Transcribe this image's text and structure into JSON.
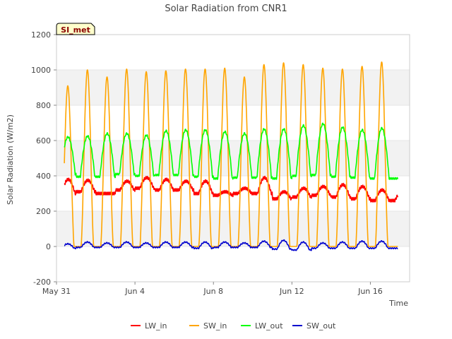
{
  "chart_data": {
    "type": "line",
    "title": "Solar Radiation from CNR1",
    "badge": "SI_met",
    "xlabel": "Time",
    "ylabel": "Solar Radiation (W/m2)",
    "ylim": [
      -200,
      1200
    ],
    "yticks": [
      -200,
      0,
      200,
      400,
      600,
      800,
      1000,
      1200
    ],
    "xlim": [
      "2024-05-31",
      "2024-06-18"
    ],
    "xticks": [
      {
        "date": "2024-05-31",
        "label": "May 31"
      },
      {
        "date": "2024-06-04",
        "label": "Jun 4"
      },
      {
        "date": "2024-06-08",
        "label": "Jun 8"
      },
      {
        "date": "2024-06-12",
        "label": "Jun 12"
      },
      {
        "date": "2024-06-16",
        "label": "Jun 16"
      }
    ],
    "grid_bands": true,
    "legend_position": "bottom",
    "series": [
      {
        "name": "LW_in",
        "color": "#ff0000",
        "daily_peak": [
          380,
          375,
          300,
          370,
          390,
          380,
          370,
          370,
          310,
          330,
          390,
          310,
          330,
          340,
          350,
          340,
          320,
          310
        ],
        "daily_base": [
          300,
          310,
          300,
          320,
          330,
          320,
          320,
          300,
          290,
          300,
          300,
          270,
          280,
          290,
          280,
          270,
          260,
          260
        ]
      },
      {
        "name": "SW_in",
        "color": "#ffa500",
        "daily_peak": [
          910,
          1000,
          960,
          1005,
          990,
          995,
          1005,
          1005,
          1010,
          960,
          1030,
          1040,
          1030,
          1010,
          1005,
          1020,
          1045,
          0
        ],
        "daily_base": [
          0,
          0,
          0,
          0,
          0,
          0,
          0,
          0,
          0,
          0,
          0,
          0,
          0,
          0,
          0,
          0,
          0,
          0
        ]
      },
      {
        "name": "LW_out",
        "color": "#00ff00",
        "daily_peak": [
          620,
          625,
          640,
          640,
          630,
          655,
          660,
          660,
          650,
          640,
          665,
          665,
          685,
          695,
          675,
          660,
          670,
          0
        ],
        "daily_base": [
          410,
          395,
          395,
          410,
          400,
          405,
          405,
          395,
          385,
          390,
          390,
          385,
          400,
          405,
          395,
          390,
          385,
          385
        ]
      },
      {
        "name": "SW_out",
        "color": "#0000cd",
        "daily_peak": [
          15,
          25,
          20,
          25,
          20,
          25,
          25,
          25,
          25,
          20,
          30,
          35,
          25,
          20,
          25,
          30,
          30,
          0
        ],
        "daily_base": [
          -10,
          -5,
          -5,
          -5,
          -5,
          -5,
          -5,
          -10,
          -5,
          -5,
          -5,
          -15,
          -20,
          -10,
          -10,
          -10,
          -10,
          -10
        ]
      }
    ]
  }
}
